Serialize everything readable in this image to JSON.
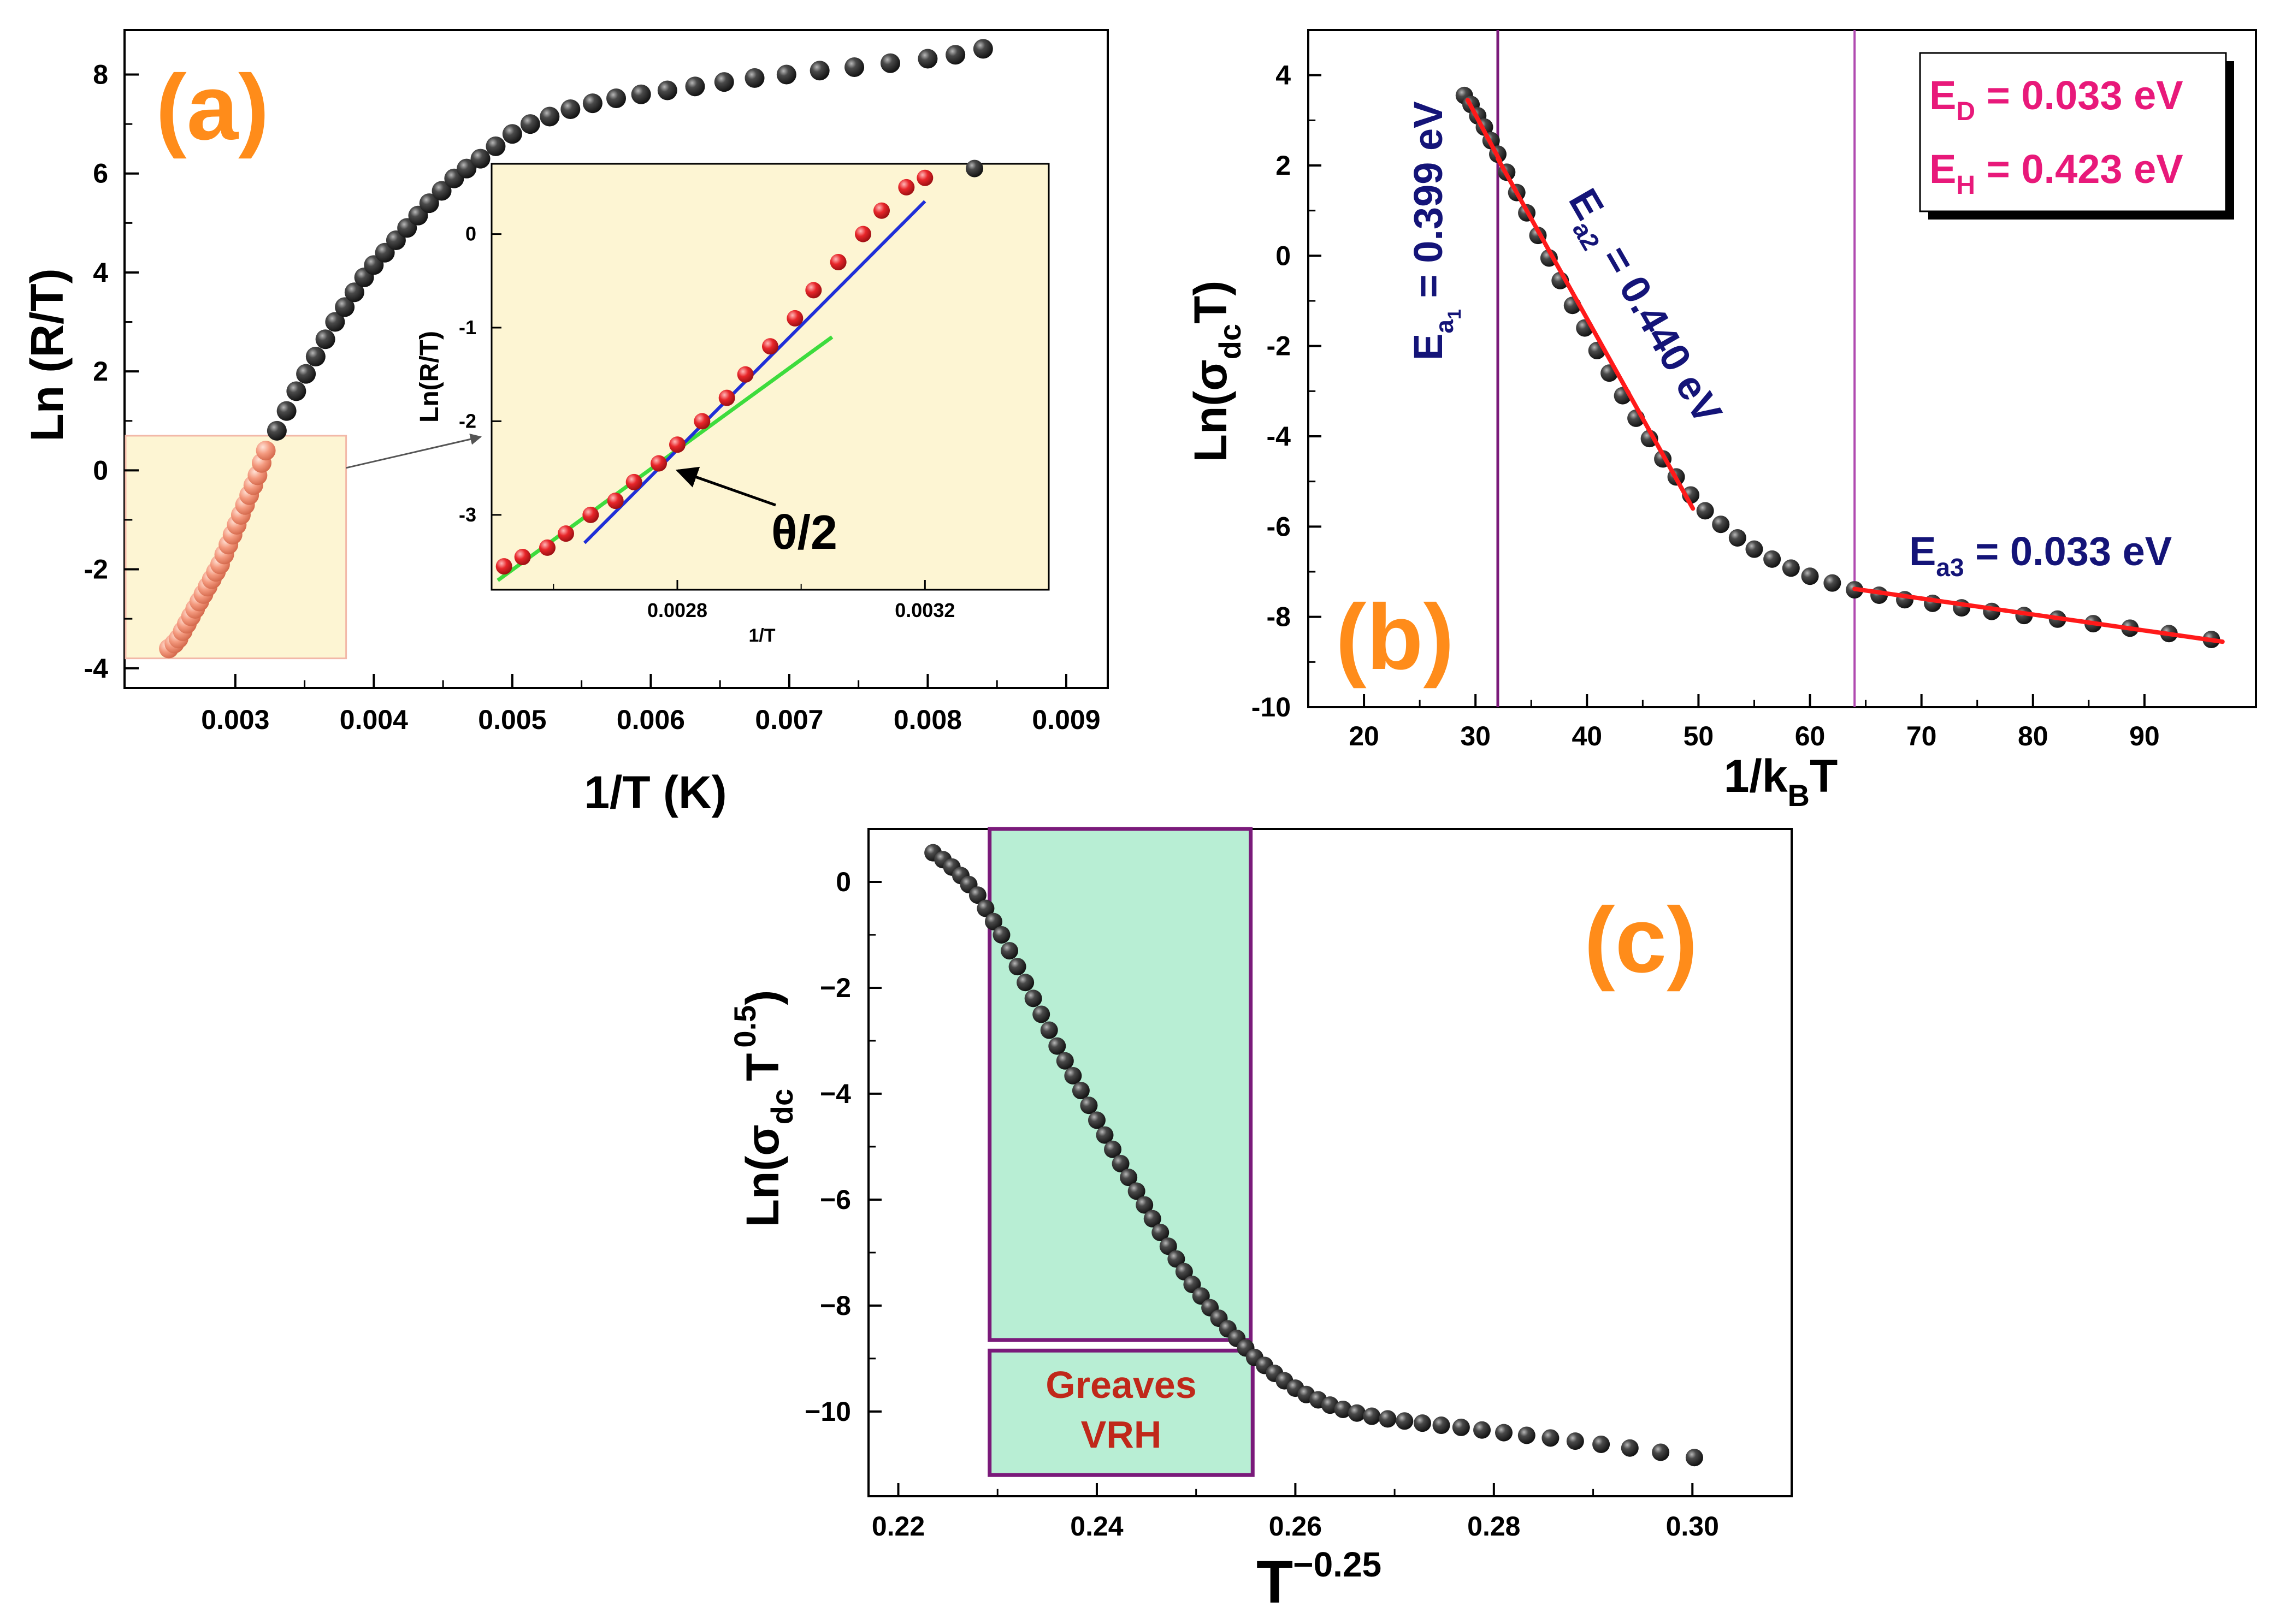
{
  "colors": {
    "dark_point": "#2b2b2b",
    "salmon_point": "#f49a7f",
    "red_point": "#e8262a",
    "red_fit": "#ff1a1a",
    "blue_fit": "#1f2fd8",
    "green_fit": "#3ddc3d",
    "inset_bg": "#fdf5d3",
    "vrh_fill": "#b8eed4",
    "purple": "#7a1a7a",
    "navy": "#141478",
    "pink": "#e8197a",
    "orange": "#ff8c1a",
    "brown_red": "#c0281a"
  },
  "chart_data": [
    {
      "type": "scatter",
      "panel_label": "(a)",
      "xlabel": "1/T (K)",
      "ylabel": "Ln (R/T)",
      "xlim": [
        0.0022,
        0.0093
      ],
      "ylim": [
        -4.4,
        8.9
      ],
      "xticks": [
        0.003,
        0.004,
        0.005,
        0.006,
        0.007,
        0.008,
        0.009
      ],
      "xtick_labels": [
        "0.003",
        "0.004",
        "0.005",
        "0.006",
        "0.007",
        "0.008",
        "0.009"
      ],
      "yticks": [
        -4,
        -2,
        0,
        2,
        4,
        6,
        8
      ],
      "ytick_labels": [
        "-4",
        "-2",
        "0",
        "2",
        "4",
        "6",
        "8"
      ],
      "highlight_region": {
        "x": [
          0.0022,
          0.0038
        ],
        "y": [
          -3.8,
          0.7
        ]
      },
      "series": [
        {
          "name": "highlighted",
          "color_key": "salmon_point",
          "x": [
            0.00252,
            0.00256,
            0.00259,
            0.00262,
            0.00265,
            0.00268,
            0.00271,
            0.00274,
            0.00277,
            0.0028,
            0.00283,
            0.00286,
            0.00289,
            0.00292,
            0.00295,
            0.00298,
            0.00301,
            0.00304,
            0.00307,
            0.0031,
            0.00313,
            0.00316,
            0.00319,
            0.00322
          ],
          "y": [
            -3.6,
            -3.5,
            -3.4,
            -3.25,
            -3.1,
            -2.95,
            -2.8,
            -2.65,
            -2.5,
            -2.35,
            -2.2,
            -2.05,
            -1.9,
            -1.7,
            -1.5,
            -1.3,
            -1.1,
            -0.9,
            -0.7,
            -0.5,
            -0.3,
            -0.1,
            0.15,
            0.4
          ]
        },
        {
          "name": "data",
          "color_key": "dark_point",
          "x": [
            0.0033,
            0.00337,
            0.00344,
            0.00351,
            0.00358,
            0.00365,
            0.00372,
            0.00379,
            0.00386,
            0.00393,
            0.004,
            0.00408,
            0.00416,
            0.00424,
            0.00432,
            0.0044,
            0.00449,
            0.00458,
            0.00467,
            0.00477,
            0.00488,
            0.005,
            0.00513,
            0.00527,
            0.00542,
            0.00558,
            0.00575,
            0.00593,
            0.00612,
            0.00632,
            0.00653,
            0.00675,
            0.00698,
            0.00722,
            0.00747,
            0.00773,
            0.008,
            0.0082,
            0.0084
          ],
          "y": [
            0.8,
            1.2,
            1.6,
            1.95,
            2.3,
            2.65,
            3.0,
            3.3,
            3.6,
            3.9,
            4.15,
            4.4,
            4.65,
            4.9,
            5.15,
            5.4,
            5.65,
            5.9,
            6.1,
            6.3,
            6.55,
            6.8,
            7.0,
            7.15,
            7.3,
            7.42,
            7.52,
            7.6,
            7.68,
            7.76,
            7.85,
            7.93,
            8.0,
            8.08,
            8.15,
            8.23,
            8.32,
            8.4,
            8.52
          ]
        }
      ],
      "inset": {
        "xlabel": "1/T",
        "ylabel": "Ln(R/T)",
        "xlim": [
          0.0025,
          0.0034
        ],
        "ylim": [
          -3.8,
          0.75
        ],
        "xticks": [
          0.0028,
          0.0032
        ],
        "xtick_labels": [
          "0.0028",
          "0.0032"
        ],
        "yticks": [
          -3,
          -2,
          -1,
          0
        ],
        "ytick_labels": [
          "-3",
          "-2",
          "-1",
          "0"
        ],
        "points_x": [
          0.00252,
          0.00255,
          0.00259,
          0.00262,
          0.00266,
          0.0027,
          0.00273,
          0.00277,
          0.0028,
          0.00284,
          0.00288,
          0.00291,
          0.00295,
          0.00299,
          0.00302,
          0.00306,
          0.0031,
          0.00313,
          0.00317,
          0.0032
        ],
        "points_y": [
          -3.55,
          -3.45,
          -3.35,
          -3.2,
          -3.0,
          -2.85,
          -2.65,
          -2.45,
          -2.25,
          -2.0,
          -1.75,
          -1.5,
          -1.2,
          -0.9,
          -0.6,
          -0.3,
          0.0,
          0.25,
          0.5,
          0.6
        ],
        "extra_point": {
          "x": 0.00328,
          "y": 0.7
        },
        "blue_line": {
          "x": [
            0.00265,
            0.0032
          ],
          "y": [
            -3.3,
            0.35
          ]
        },
        "green_line": {
          "x": [
            0.00251,
            0.00305
          ],
          "y": [
            -3.7,
            -1.1
          ]
        },
        "annotation": "θ/2",
        "annotation_target": {
          "x": 0.00279,
          "y": -2.48
        }
      }
    },
    {
      "type": "scatter",
      "panel_label": "(b)",
      "xlabel_main": "1/k",
      "xlabel_sub": "B",
      "xlabel_tail": "T",
      "ylabel_main": "Ln(σ",
      "ylabel_sub": "dc",
      "ylabel_tail": "T)",
      "xlim": [
        15,
        100
      ],
      "ylim": [
        -10,
        5
      ],
      "xticks": [
        20,
        30,
        40,
        50,
        60,
        70,
        80,
        90
      ],
      "xtick_labels": [
        "20",
        "30",
        "40",
        "50",
        "60",
        "70",
        "80",
        "90"
      ],
      "yticks": [
        -10,
        -8,
        -6,
        -4,
        -2,
        0,
        2,
        4
      ],
      "ytick_labels": [
        "-10",
        "-8",
        "-6",
        "-4",
        "-2",
        "0",
        "2",
        "4"
      ],
      "vlines": [
        32,
        64
      ],
      "x": [
        29,
        29.6,
        30.2,
        30.8,
        31.4,
        32,
        32.8,
        33.7,
        34.6,
        35.6,
        36.6,
        37.6,
        38.7,
        39.8,
        40.9,
        42,
        43.2,
        44.4,
        45.6,
        46.8,
        48,
        49.3,
        50.6,
        52,
        53.5,
        55,
        56.6,
        58.3,
        60,
        62,
        64,
        66.2,
        68.5,
        71,
        73.6,
        76.3,
        79.2,
        82.2,
        85.4,
        88.7,
        92.2,
        96
      ],
      "y": [
        3.55,
        3.35,
        3.1,
        2.85,
        2.55,
        2.25,
        1.85,
        1.4,
        0.95,
        0.45,
        -0.05,
        -0.55,
        -1.1,
        -1.6,
        -2.1,
        -2.6,
        -3.1,
        -3.6,
        -4.05,
        -4.5,
        -4.9,
        -5.3,
        -5.65,
        -5.95,
        -6.25,
        -6.5,
        -6.72,
        -6.92,
        -7.1,
        -7.25,
        -7.4,
        -7.52,
        -7.62,
        -7.7,
        -7.8,
        -7.88,
        -7.97,
        -8.05,
        -8.15,
        -8.25,
        -8.37,
        -8.5
      ],
      "red_fits": [
        {
          "x": [
            29.3,
            32.2
          ],
          "y": [
            3.45,
            2.1
          ]
        },
        {
          "x": [
            32,
            49.5
          ],
          "y": [
            2.15,
            -5.6
          ]
        },
        {
          "x": [
            64,
            97
          ],
          "y": [
            -7.38,
            -8.55
          ]
        }
      ],
      "annotations": {
        "ea1_base": "E",
        "ea1_sub": "a",
        "ea1_subsub": "1",
        "ea1_value": " = 0.399 eV",
        "ea2_base": "E",
        "ea2_sub": "a2",
        "ea2_value": " = 0.440 eV",
        "ea3_base": "E",
        "ea3_sub": "a3",
        "ea3_value": " = 0.033 eV"
      },
      "legend": {
        "ed_base": "E",
        "ed_sub": "D",
        "ed_value": " = 0.033 eV",
        "eh_base": "E",
        "eh_sub": "H",
        "eh_value": " = 0.423 eV"
      }
    },
    {
      "type": "scatter",
      "panel_label": "(c)",
      "xlabel_main": "T",
      "xlabel_sup": "−0.25",
      "ylabel_main": "Ln(σ",
      "ylabel_sub": "dc",
      "ylabel_mid": "T",
      "ylabel_sup": "0.5",
      "ylabel_tail": ")",
      "xlim": [
        0.217,
        0.31
      ],
      "ylim": [
        -11.6,
        1.0
      ],
      "xticks": [
        0.22,
        0.24,
        0.26,
        0.28,
        0.3
      ],
      "xtick_labels": [
        "0.22",
        "0.24",
        "0.26",
        "0.28",
        "0.30"
      ],
      "yticks": [
        -10,
        -8,
        -6,
        -4,
        -2,
        0
      ],
      "ytick_labels": [
        "−10",
        "−8",
        "−6",
        "−4",
        "−2",
        "0"
      ],
      "vrh_region": {
        "x": [
          0.2292,
          0.2555
        ],
        "y": [
          -8.65,
          1.0
        ]
      },
      "vrh_label_region": {
        "x": [
          0.2292,
          0.2557
        ],
        "y": [
          -11.2,
          -8.85
        ]
      },
      "vrh_label_line1": "Greaves",
      "vrh_label_line2": "VRH",
      "x": [
        0.2235,
        0.2245,
        0.2254,
        0.2263,
        0.2271,
        0.228,
        0.2288,
        0.2296,
        0.2304,
        0.2312,
        0.232,
        0.2328,
        0.2336,
        0.2344,
        0.2352,
        0.236,
        0.2368,
        0.2376,
        0.2384,
        0.2392,
        0.24,
        0.2408,
        0.2416,
        0.2424,
        0.2432,
        0.244,
        0.2448,
        0.2456,
        0.2464,
        0.2472,
        0.248,
        0.2488,
        0.2496,
        0.2505,
        0.2514,
        0.2523,
        0.2532,
        0.2541,
        0.255,
        0.2559,
        0.2569,
        0.2579,
        0.2589,
        0.26,
        0.2611,
        0.2623,
        0.2635,
        0.2648,
        0.2662,
        0.2677,
        0.2693,
        0.271,
        0.2728,
        0.2747,
        0.2767,
        0.2788,
        0.281,
        0.2833,
        0.2857,
        0.2882,
        0.2908,
        0.2937,
        0.2968,
        0.3002
      ],
      "y": [
        0.55,
        0.42,
        0.28,
        0.12,
        -0.05,
        -0.25,
        -0.5,
        -0.75,
        -1.0,
        -1.3,
        -1.6,
        -1.9,
        -2.2,
        -2.5,
        -2.8,
        -3.1,
        -3.38,
        -3.66,
        -3.94,
        -4.22,
        -4.5,
        -4.78,
        -5.05,
        -5.32,
        -5.58,
        -5.84,
        -6.1,
        -6.36,
        -6.62,
        -6.88,
        -7.12,
        -7.36,
        -7.6,
        -7.82,
        -8.04,
        -8.24,
        -8.44,
        -8.62,
        -8.8,
        -8.98,
        -9.13,
        -9.28,
        -9.42,
        -9.56,
        -9.68,
        -9.78,
        -9.88,
        -9.96,
        -10.03,
        -10.09,
        -10.14,
        -10.18,
        -10.22,
        -10.26,
        -10.3,
        -10.35,
        -10.4,
        -10.45,
        -10.5,
        -10.56,
        -10.62,
        -10.69,
        -10.77,
        -10.87
      ]
    }
  ]
}
